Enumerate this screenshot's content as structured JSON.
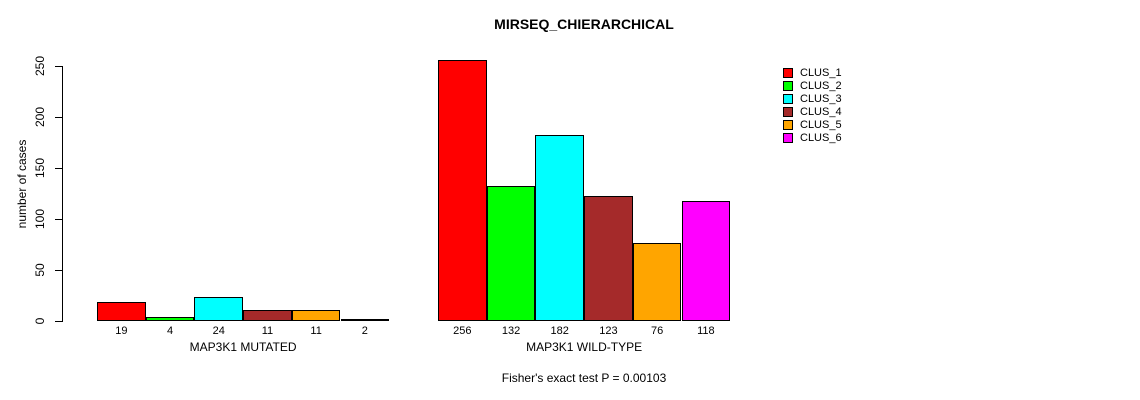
{
  "chart_data": {
    "type": "bar",
    "title": "MIRSEQ_CHIERARCHICAL",
    "ylabel": "number of cases",
    "xlabel": "",
    "ylim": [
      0,
      250
    ],
    "yticks": [
      0,
      50,
      100,
      150,
      200,
      250
    ],
    "grid": false,
    "legend_position": "right-outside",
    "legend": [
      {
        "label": "CLUS_1",
        "color": "#FF0000"
      },
      {
        "label": "CLUS_2",
        "color": "#00FF00"
      },
      {
        "label": "CLUS_3",
        "color": "#00FFFF"
      },
      {
        "label": "CLUS_4",
        "color": "#A52A2A"
      },
      {
        "label": "CLUS_5",
        "color": "#FFA500"
      },
      {
        "label": "CLUS_6",
        "color": "#FF00FF"
      }
    ],
    "groups": [
      {
        "label": "MAP3K1 MUTATED",
        "values": [
          19,
          4,
          24,
          11,
          11,
          2
        ]
      },
      {
        "label": "MAP3K1 WILD-TYPE",
        "values": [
          256,
          132,
          182,
          123,
          76,
          118
        ]
      }
    ],
    "annotation": "Fisher's exact test P = 0.00103",
    "axis_color": "#000000",
    "background_color": "#FFFFFF"
  }
}
